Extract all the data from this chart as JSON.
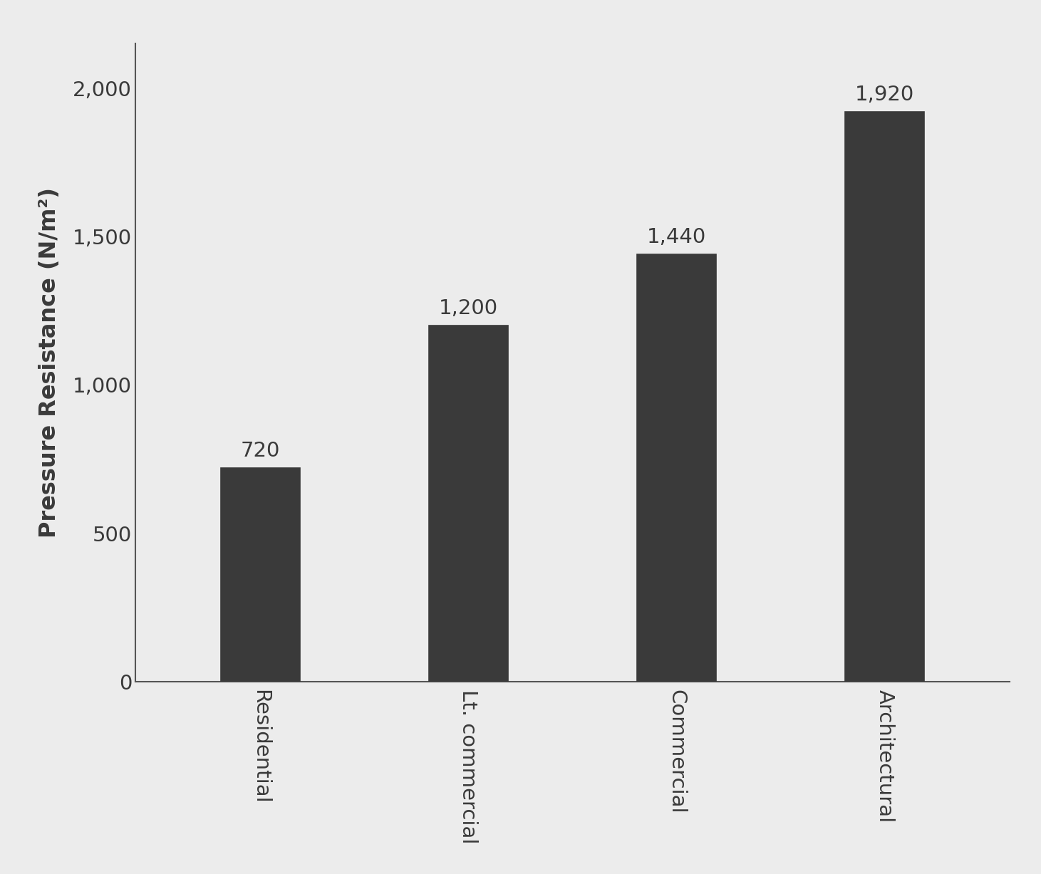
{
  "categories": [
    "Residential",
    "Lt. commercial",
    "Commercial",
    "Architectural"
  ],
  "values": [
    720,
    1200,
    1440,
    1920
  ],
  "labels": [
    "720",
    "1,200",
    "1,440",
    "1,920"
  ],
  "bar_edge_color": "#3a3a3a",
  "background_color": "#ececec",
  "ylabel": "Pressure Resistance (N/m²)",
  "ylim": [
    0,
    2150
  ],
  "yticks": [
    0,
    500,
    1000,
    1500,
    2000
  ],
  "ytick_labels": [
    "0",
    "500",
    "1,000",
    "1,500",
    "2,000"
  ],
  "ylabel_fontsize": 23,
  "tick_fontsize": 21,
  "label_fontsize": 21,
  "xlabel_fontsize": 21,
  "bar_width": 0.38,
  "hatch_density": 12
}
